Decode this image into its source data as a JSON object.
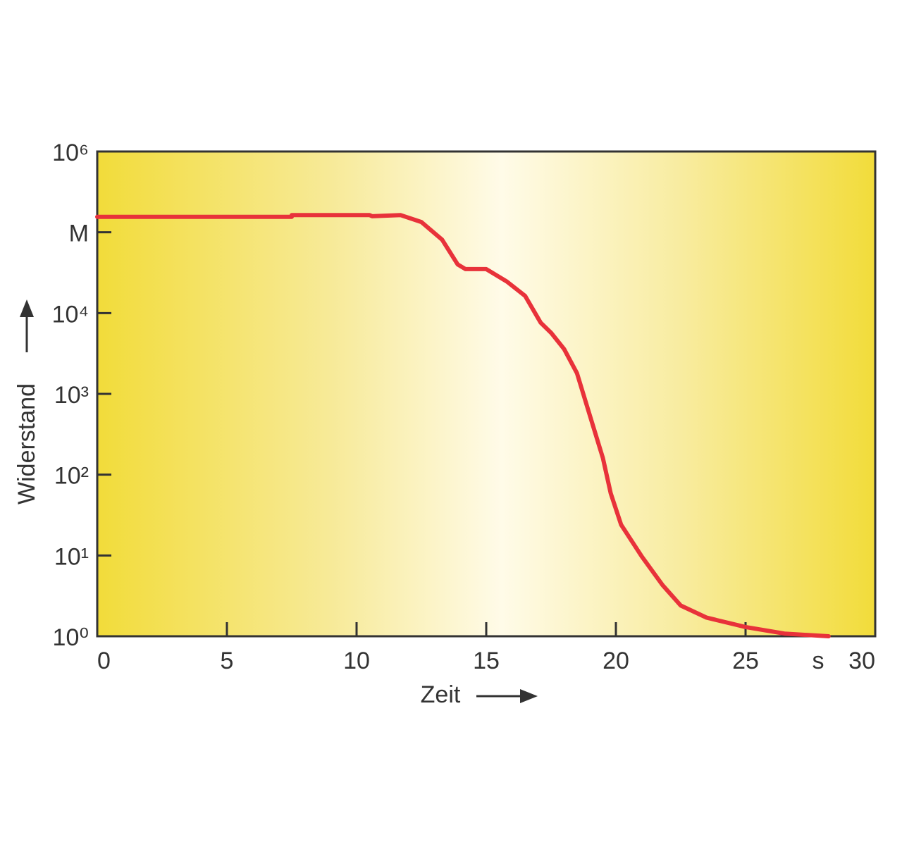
{
  "chart_data": {
    "type": "line",
    "x": [
      0,
      7.5,
      7.5,
      10.5,
      10.6,
      11.7,
      12.5,
      13.3,
      13.9,
      14.2,
      15,
      15.8,
      16.5,
      17.1,
      17.5,
      18,
      18.5,
      19,
      19.5,
      19.8,
      20.2,
      21,
      21.8,
      22.5,
      23.5,
      25,
      26.5,
      28.2
    ],
    "series": [
      {
        "name": "Widerstand",
        "color": "#e8323a",
        "values": [
          155000,
          155000,
          163000,
          163000,
          158000,
          163000,
          134000,
          81000,
          40000,
          35000,
          35000,
          24500,
          16300,
          7600,
          5700,
          3600,
          1800,
          535,
          160,
          59,
          24,
          9.7,
          4.3,
          2.4,
          1.7,
          1.3,
          1.08,
          1
        ]
      }
    ],
    "xlabel": "Zeit",
    "ylabel": "Widerstand",
    "xunit": "s",
    "xlim": [
      0,
      30
    ],
    "xticks": [
      0,
      5,
      10,
      15,
      20,
      25,
      30
    ],
    "ylim": [
      1,
      1000000
    ],
    "ylog": true,
    "yticks": [
      {
        "value": 1,
        "label": "10⁰"
      },
      {
        "value": 10,
        "label": "10¹"
      },
      {
        "value": 100,
        "label": "10²"
      },
      {
        "value": 1000,
        "label": "10³"
      },
      {
        "value": 10000,
        "label": "10⁴"
      },
      {
        "value": 100000,
        "label": "M"
      },
      {
        "value": 1000000,
        "label": "10⁶"
      }
    ]
  }
}
